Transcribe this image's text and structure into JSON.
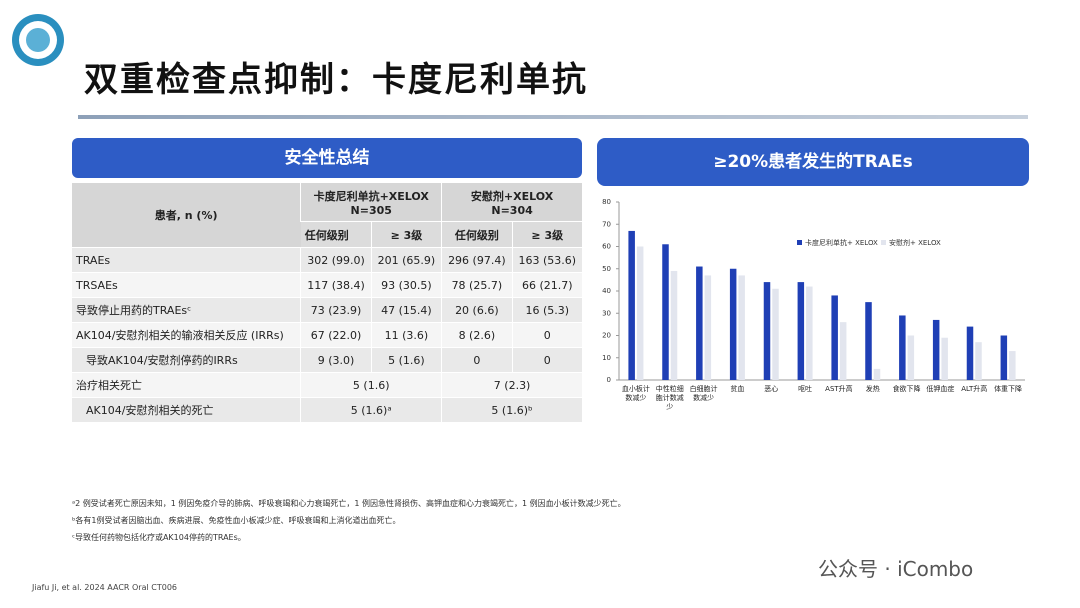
{
  "header": {
    "title": "双重检查点抑制：卡度尼利单抗"
  },
  "table_panel": {
    "title": "安全性总结",
    "header_row": [
      "患者, n (%)",
      "卡度尼利单抗+XELOX",
      "N=305",
      "安慰剂+XELOX",
      "N=304"
    ],
    "sub_header": [
      "任何级别",
      "≥ 3级",
      "任何级别",
      "≥ 3级"
    ],
    "rows": [
      [
        "TRAEs",
        "302 (99.0)",
        "201 (65.9)",
        "296 (97.4)",
        "163 (53.6)"
      ],
      [
        "TRSAEs",
        "117 (38.4)",
        "93 (30.5)",
        "78 (25.7)",
        "66 (21.7)"
      ],
      [
        "导致停止用药的TRAEsᶜ",
        "73 (23.9)",
        "47 (15.4)",
        "20 (6.6)",
        "16 (5.3)"
      ],
      [
        "AK104/安慰剂相关的输液相关反应 (IRRs)",
        "67 (22.0)",
        "11 (3.6)",
        "8 (2.6)",
        "0"
      ],
      [
        "导致AK104/安慰剂停药的IRRs",
        "9 (3.0)",
        "5 (1.6)",
        "0",
        "0"
      ],
      [
        "治疗相关死亡",
        "5 (1.6)",
        "7 (2.3)"
      ],
      [
        "AK104/安慰剂相关的死亡",
        "5 (1.6)ᵃ",
        "5 (1.6)ᵇ"
      ]
    ]
  },
  "chart_data": {
    "type": "bar",
    "title": "≥20%患者发生的TRAEs",
    "categories": [
      "血小板计数减少",
      "中性粒细胞计数减少",
      "白细胞计数减少",
      "贫血",
      "恶心",
      "呕吐",
      "AST升高",
      "发热",
      "食欲下降",
      "低钾血症",
      "ALT升高",
      "体重下降"
    ],
    "series": [
      {
        "name": "卡度尼利单抗+ XELOX",
        "color": "#1f3fb5",
        "values": [
          67,
          61,
          51,
          50,
          44,
          44,
          38,
          35,
          29,
          27,
          24,
          20
        ]
      },
      {
        "name": "安慰剂+ XELOX",
        "color": "#e2e5ee",
        "values": [
          60,
          49,
          47,
          47,
          41,
          42,
          26,
          5,
          20,
          19,
          17,
          13
        ]
      }
    ],
    "ylim": [
      0,
      80
    ],
    "yticks": [
      0,
      10,
      20,
      30,
      40,
      50,
      60,
      70,
      80
    ]
  },
  "footnotes": [
    "ᵃ2 例受试者死亡原因未知，1 例因免疫介导的肺病、呼吸衰竭和心力衰竭死亡，1 例因急性肾损伤、高钾血症和心力衰竭死亡，1 例因血小板计数减少死亡。",
    "ᵇ各有1例受试者因脑出血、疾病进展、免疫性血小板减少症、呼吸衰竭和上消化道出血死亡。",
    "ᶜ导致任何药物包括化疗或AK104停药的TRAEs。"
  ],
  "source": "Jiafu Ji, et al. 2024 AACR Oral CT006",
  "watermark": "公众号 · iCombo"
}
